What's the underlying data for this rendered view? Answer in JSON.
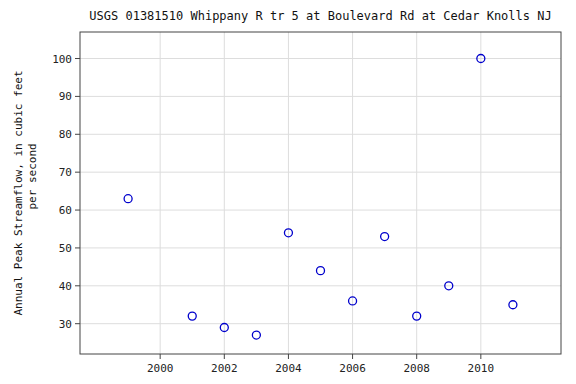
{
  "chart_data": {
    "type": "scatter",
    "title": "USGS 01381510 Whippany R tr 5 at Boulevard Rd at Cedar Knolls NJ",
    "ylabel": "Annual Peak Streamflow, in cubic feet\n     per second",
    "x": [
      1999,
      2001,
      2002,
      2003,
      2004,
      2005,
      2006,
      2007,
      2008,
      2009,
      2010,
      2011
    ],
    "values": [
      63,
      32,
      29,
      27,
      54,
      44,
      36,
      53,
      32,
      40,
      100,
      35
    ],
    "xlim": [
      1997.5,
      2012.5
    ],
    "ylim": [
      22,
      107
    ],
    "xticks": [
      2000,
      2002,
      2004,
      2006,
      2008,
      2010
    ],
    "yticks": [
      30,
      40,
      50,
      60,
      70,
      80,
      90,
      100
    ],
    "color": "#0000cc",
    "marker": "circle",
    "grid": true
  }
}
